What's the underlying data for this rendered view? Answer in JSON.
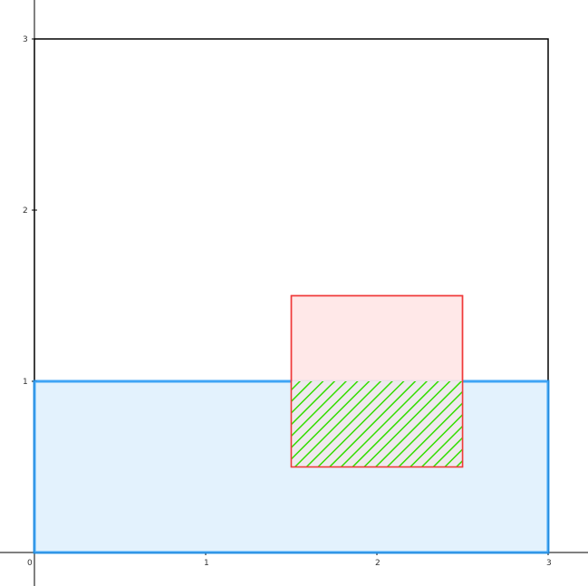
{
  "chart_data": {
    "type": "geometry",
    "axes": {
      "x_range": [
        0,
        3
      ],
      "y_range": [
        0,
        3
      ],
      "x_ticks": [
        "0",
        "1",
        "2",
        "3"
      ],
      "y_ticks": [
        "1",
        "2",
        "3"
      ],
      "grid": false
    },
    "shapes": [
      {
        "name": "outer-square",
        "x": [
          0,
          3
        ],
        "y": [
          0,
          3
        ],
        "stroke": "#000000",
        "fill": "none"
      },
      {
        "name": "blue-rectangle",
        "x": [
          0,
          3
        ],
        "y": [
          0,
          1
        ],
        "stroke": "#2196f3",
        "fill": "#e3f2fd"
      },
      {
        "name": "red-rectangle",
        "x": [
          1.5,
          2.5
        ],
        "y": [
          0.5,
          1.5
        ],
        "stroke": "#ef3b3b",
        "fill": "#ffe5e5"
      },
      {
        "name": "intersection-hatched",
        "x": [
          1.5,
          2.5
        ],
        "y": [
          0.5,
          1
        ],
        "hatch_color": "#33dd00",
        "hatch_background": "#efe9ee"
      }
    ]
  }
}
